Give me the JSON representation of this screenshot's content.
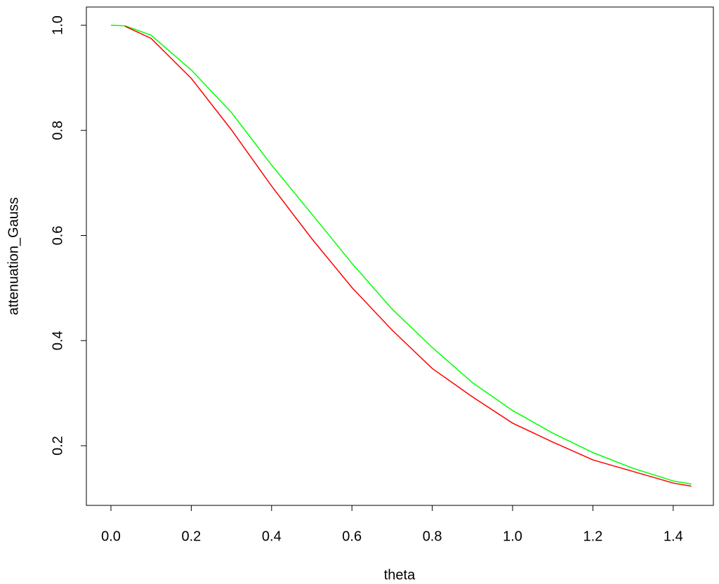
{
  "chart_data": {
    "type": "line",
    "x_label": "theta",
    "y_label": "attenuation_Gauss",
    "x": [
      0,
      0.035,
      0.1,
      0.2,
      0.3,
      0.4,
      0.5,
      0.6,
      0.7,
      0.8,
      0.9,
      1.0,
      1.1,
      1.2,
      1.3,
      1.4,
      1.445
    ],
    "series": [
      {
        "color": "#00ff00",
        "values": [
          1.0,
          0.999,
          0.981,
          0.915,
          0.834,
          0.734,
          0.641,
          0.547,
          0.46,
          0.387,
          0.32,
          0.267,
          0.224,
          0.187,
          0.157,
          0.133,
          0.127
        ]
      },
      {
        "color": "#ff0000",
        "values": [
          null,
          0.998,
          0.975,
          0.899,
          0.801,
          0.694,
          0.594,
          0.501,
          0.42,
          0.347,
          0.293,
          0.243,
          0.207,
          0.173,
          0.151,
          0.129,
          0.123
        ]
      }
    ],
    "xlim": [
      -0.0612,
      1.5
    ],
    "ylim": [
      0.0865,
      1.0347
    ],
    "xticks": [
      {
        "value": 0,
        "label": "0.0"
      },
      0.2,
      0.4,
      0.6,
      0.8,
      {
        "value": 1,
        "label": "1.0"
      },
      1.2,
      1.4
    ],
    "yticks": [
      0.2,
      0.4,
      0.6,
      0.8,
      {
        "value": 1,
        "label": "1.0"
      }
    ],
    "grid": false
  }
}
